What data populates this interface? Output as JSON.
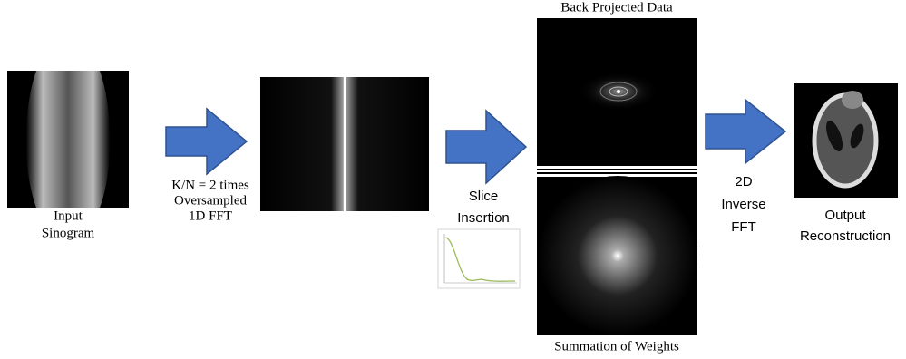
{
  "input_label": [
    "Input",
    "Sinogram"
  ],
  "step1_label": [
    "K/N = 2 times",
    "Oversampled",
    "1D FFT"
  ],
  "step2_label": [
    "Slice",
    "Insertion"
  ],
  "back_projected_title": "Back Projected Data",
  "weights_title": "Summation of Weights",
  "step3_label": [
    "2D",
    "Inverse",
    "FFT"
  ],
  "output_label": [
    "Output",
    "Reconstruction"
  ]
}
